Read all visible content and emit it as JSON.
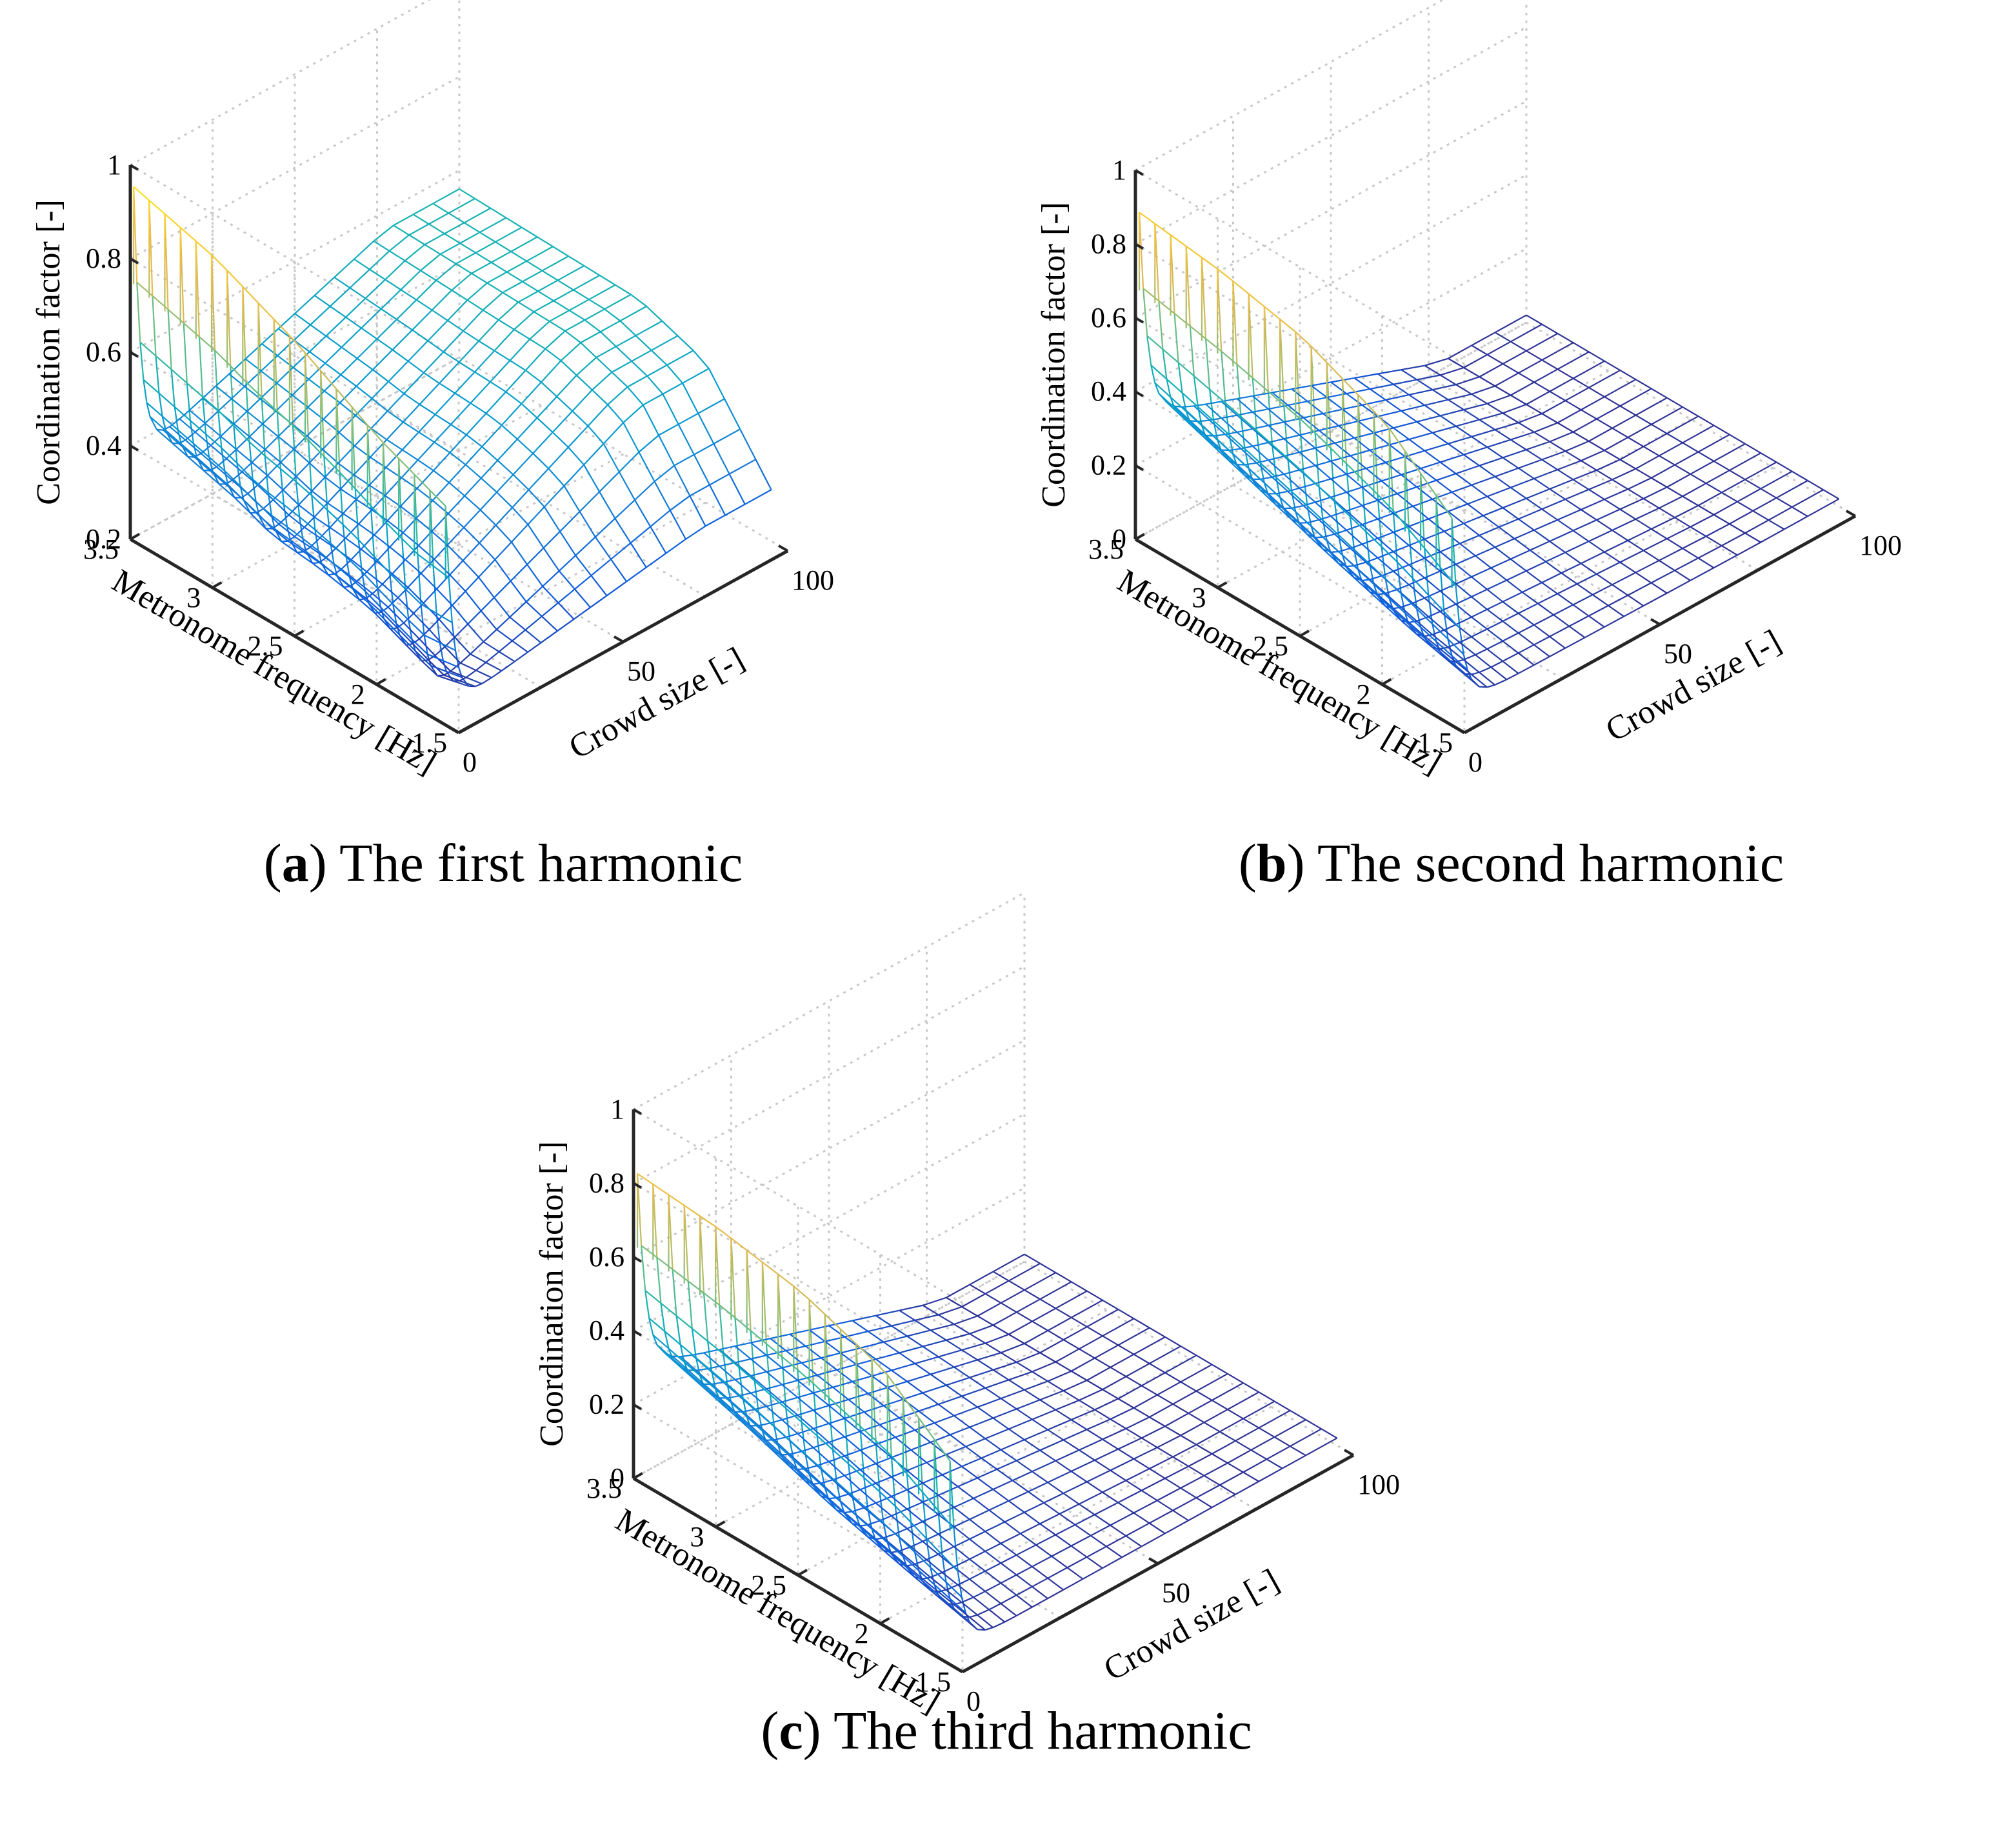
{
  "panels": [
    {
      "id": "a",
      "caption": {
        "letter": "a",
        "title": "The first harmonic"
      },
      "chart_data": {
        "type": "surface-mesh",
        "title": "",
        "xlabel": "Crowd size [-]",
        "ylabel": "Metronome frequency [Hz]",
        "zlabel": "Coordination factor [-]",
        "x_ticks": [
          "0",
          "50",
          "100"
        ],
        "x_tick_values": [
          0,
          50,
          100
        ],
        "y_ticks": [
          "3.5",
          "3",
          "2.5",
          "2",
          "1.5"
        ],
        "y_tick_values": [
          3.5,
          3,
          2.5,
          2,
          1.5
        ],
        "z_ticks": [
          "0.2",
          "0.4",
          "0.6",
          "0.8",
          "1"
        ],
        "z_tick_values": [
          0.2,
          0.4,
          0.6,
          0.8,
          1
        ],
        "xlim": [
          0,
          100
        ],
        "ylim": [
          1.5,
          3.5
        ],
        "zlim": [
          0.2,
          1
        ],
        "colormap": "parula",
        "grid": true,
        "surface_model": {
          "n_crowd": 100,
          "frequency_range": [
            1.6,
            3.5
          ],
          "peak_at_crowd_1": [
            [
              3.5,
              0.95
            ],
            [
              3.0,
              0.9
            ],
            [
              2.5,
              0.82
            ],
            [
              2.0,
              0.72
            ],
            [
              1.6,
              0.66
            ]
          ],
          "plateau_value": [
            [
              3.5,
              0.38
            ],
            [
              3.0,
              0.33
            ],
            [
              2.8,
              0.3
            ],
            [
              2.5,
              0.29
            ],
            [
              2.2,
              0.27
            ],
            [
              2.0,
              0.24
            ],
            [
              1.8,
              0.21
            ],
            [
              1.6,
              0.23
            ]
          ],
          "far_field_value": [
            [
              3.5,
              0.56
            ],
            [
              2.4,
              0.55
            ],
            [
              2.0,
              0.5
            ],
            [
              1.6,
              0.31
            ]
          ]
        }
      }
    },
    {
      "id": "b",
      "caption": {
        "letter": "b",
        "title": "The second harmonic"
      },
      "chart_data": {
        "type": "surface-mesh",
        "title": "",
        "xlabel": "Crowd size [-]",
        "ylabel": "Metronome frequency [Hz]",
        "zlabel": "Coordination factor [-]",
        "x_ticks": [
          "0",
          "50",
          "100"
        ],
        "x_tick_values": [
          0,
          50,
          100
        ],
        "y_ticks": [
          "3.5",
          "3",
          "2.5",
          "2",
          "1.5"
        ],
        "y_tick_values": [
          3.5,
          3,
          2.5,
          2,
          1.5
        ],
        "z_ticks": [
          "0",
          "0.2",
          "0.4",
          "0.6",
          "0.8",
          "1"
        ],
        "z_tick_values": [
          0,
          0.2,
          0.4,
          0.6,
          0.8,
          1
        ],
        "xlim": [
          0,
          100
        ],
        "ylim": [
          1.5,
          3.5
        ],
        "zlim": [
          0,
          1
        ],
        "colormap": "parula",
        "grid": true,
        "surface_model": {
          "n_crowd": 100,
          "frequency_range": [
            1.6,
            3.5
          ],
          "peak_at_crowd_1": [
            [
              3.5,
              0.88
            ],
            [
              3.0,
              0.85
            ],
            [
              2.5,
              0.8
            ],
            [
              2.0,
              0.7
            ],
            [
              1.6,
              0.55
            ]
          ],
          "plateau_value": [
            [
              3.5,
              0.3
            ],
            [
              3.0,
              0.22
            ],
            [
              2.5,
              0.14
            ],
            [
              2.0,
              0.07
            ],
            [
              1.6,
              0.03
            ]
          ],
          "far_field_value": [
            [
              3.5,
              0.02
            ],
            [
              1.6,
              0.02
            ]
          ]
        }
      }
    },
    {
      "id": "c",
      "caption": {
        "letter": "c",
        "title": "The third harmonic"
      },
      "chart_data": {
        "type": "surface-mesh",
        "title": "",
        "xlabel": "Crowd size [-]",
        "ylabel": "Metronome frequency [Hz]",
        "zlabel": "Coordination factor [-]",
        "x_ticks": [
          "0",
          "50",
          "100"
        ],
        "x_tick_values": [
          0,
          50,
          100
        ],
        "y_ticks": [
          "3.5",
          "3",
          "2.5",
          "2",
          "1.5"
        ],
        "y_tick_values": [
          3.5,
          3,
          2.5,
          2,
          1.5
        ],
        "z_ticks": [
          "0",
          "0.2",
          "0.4",
          "0.6",
          "0.8",
          "1"
        ],
        "z_tick_values": [
          0,
          0.2,
          0.4,
          0.6,
          0.8,
          1
        ],
        "xlim": [
          0,
          100
        ],
        "ylim": [
          1.5,
          3.5
        ],
        "zlim": [
          0,
          1
        ],
        "colormap": "parula",
        "grid": true,
        "surface_model": {
          "n_crowd": 100,
          "frequency_range": [
            1.6,
            3.5
          ],
          "peak_at_crowd_1": [
            [
              3.5,
              0.82
            ],
            [
              3.0,
              0.8
            ],
            [
              2.5,
              0.76
            ],
            [
              2.0,
              0.68
            ],
            [
              1.6,
              0.54
            ]
          ],
          "plateau_value": [
            [
              3.5,
              0.27
            ],
            [
              3.0,
              0.2
            ],
            [
              2.5,
              0.12
            ],
            [
              2.0,
              0.06
            ],
            [
              1.6,
              0.02
            ]
          ],
          "far_field_value": [
            [
              3.5,
              0.02
            ],
            [
              1.6,
              0.02
            ]
          ]
        }
      }
    }
  ]
}
